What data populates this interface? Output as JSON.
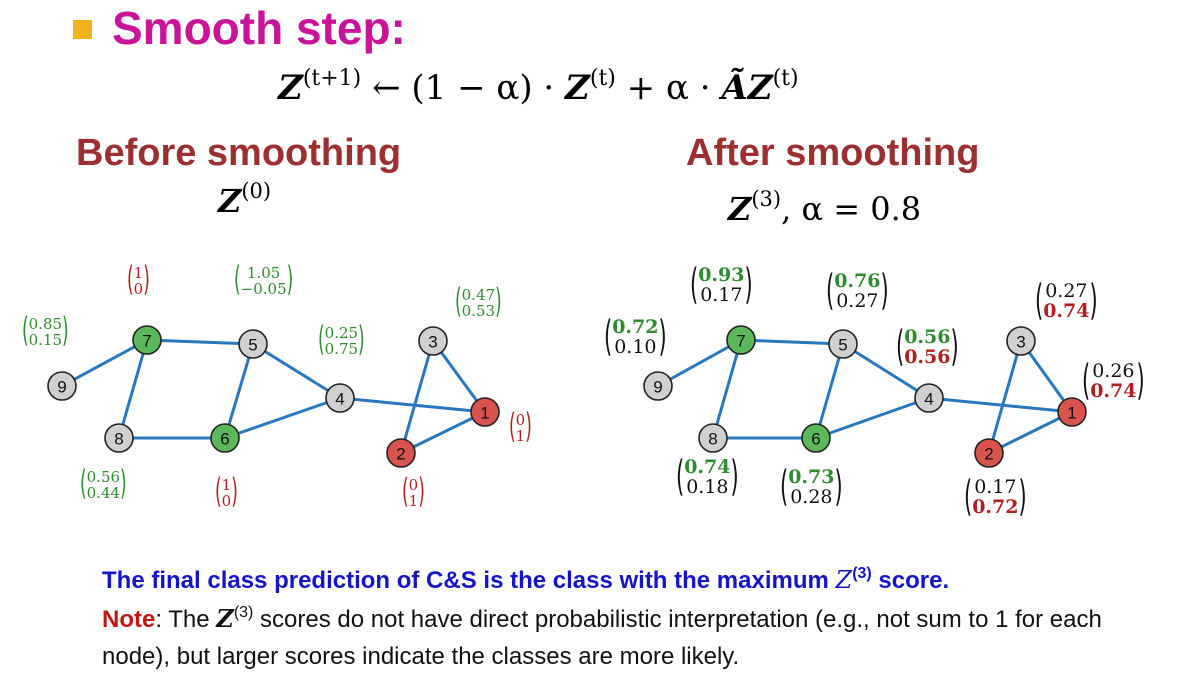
{
  "slide": {
    "title": "Smooth step:",
    "formula": {
      "z": "Z",
      "sup_next": "(t+1)",
      "arrow": " ← (1 − α) · ",
      "sup_t": "(t)",
      "plus": " + α · ",
      "atilde": "Ã",
      "sup_t2": "(t)"
    },
    "before": {
      "heading": "Before smoothing",
      "z": "Z",
      "sup": "(0)"
    },
    "after": {
      "heading": "After smoothing",
      "z": "Z",
      "sup": "(3)",
      "alpha": ", α = 0.8"
    },
    "nodes": [
      {
        "id": "9",
        "label": "9",
        "color": "#d0d0d0"
      },
      {
        "id": "7",
        "label": "7",
        "color": "#5cb85c"
      },
      {
        "id": "5",
        "label": "5",
        "color": "#d0d0d0"
      },
      {
        "id": "8",
        "label": "8",
        "color": "#d0d0d0"
      },
      {
        "id": "6",
        "label": "6",
        "color": "#5cb85c"
      },
      {
        "id": "4",
        "label": "4",
        "color": "#d0d0d0"
      },
      {
        "id": "3",
        "label": "3",
        "color": "#d0d0d0"
      },
      {
        "id": "2",
        "label": "2",
        "color": "#d9534f"
      },
      {
        "id": "1",
        "label": "1",
        "color": "#d9534f"
      }
    ],
    "before_scores": {
      "n7": [
        "1",
        "0"
      ],
      "n5": [
        "1.05",
        "−0.05"
      ],
      "n9": [
        "0.85",
        "0.15"
      ],
      "n4": [
        "0.25",
        "0.75"
      ],
      "n3": [
        "0.47",
        "0.53"
      ],
      "n8": [
        "0.56",
        "0.44"
      ],
      "n6": [
        "1",
        "0"
      ],
      "n2": [
        "0",
        "1"
      ],
      "n1": [
        "0",
        "1"
      ]
    },
    "after_scores": {
      "n7": [
        "0.93",
        "0.17"
      ],
      "n5": [
        "0.76",
        "0.27"
      ],
      "n9": [
        "0.72",
        "0.10"
      ],
      "n4": [
        "0.56",
        "0.56"
      ],
      "n3": [
        "0.27",
        "0.74"
      ],
      "n1": [
        "0.26",
        "0.74"
      ],
      "n8": [
        "0.74",
        "0.18"
      ],
      "n6": [
        "0.73",
        "0.28"
      ],
      "n2": [
        "0.17",
        "0.72"
      ]
    },
    "text1": {
      "a": "The final class prediction of C&S is the class with the maximum ",
      "z": "Z",
      "sup": "(3)",
      "b": " score."
    },
    "text2": {
      "note": "Note",
      "a": ": The ",
      "z": "Z",
      "sup": "(3)",
      "b": " scores do not have direct probabilistic interpretation (e.g., not sum to 1 for each node), but larger scores indicate the classes are more likely."
    },
    "colors": {
      "title": "#c9149a",
      "heading": "#9c2f2f",
      "edge": "#2878c0",
      "green": "#2e8b2e",
      "red": "#b02020",
      "blue_text": "#1515c8"
    }
  }
}
